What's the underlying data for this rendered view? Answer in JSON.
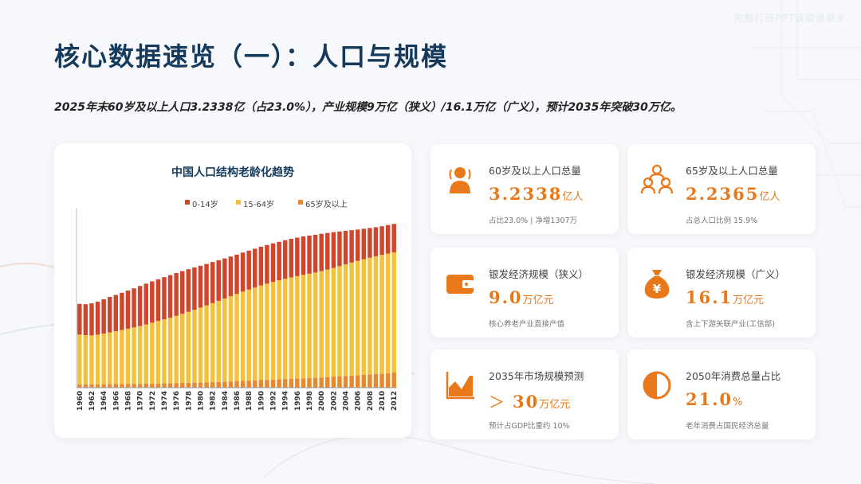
{
  "header": {
    "title": "核心数据速览（一）：人口与规模",
    "subtitle": "2025年末60岁及以上人口3.2338亿（占23.0%），产业规模9万亿（狭义）/16.1万亿（广义），预计2035年突破30万亿。",
    "watermark": "完整行研PPT获取请联系"
  },
  "chart_data": {
    "type": "bar",
    "stacked": true,
    "title": "中国人口结构老龄化趋势",
    "legend_position": "top",
    "x": [
      1960,
      1961,
      1962,
      1963,
      1964,
      1965,
      1966,
      1967,
      1968,
      1969,
      1970,
      1971,
      1972,
      1973,
      1974,
      1975,
      1976,
      1977,
      1978,
      1979,
      1980,
      1981,
      1982,
      1983,
      1984,
      1985,
      1986,
      1987,
      1988,
      1989,
      1990,
      1991,
      1992,
      1993,
      1994,
      1995,
      1996,
      1997,
      1998,
      1999,
      2000,
      2001,
      2002,
      2003,
      2004,
      2005,
      2006,
      2007,
      2008,
      2009,
      2010,
      2011,
      2012
    ],
    "tick_labels": [
      "1960",
      "1962",
      "1964",
      "1966",
      "1968",
      "1970",
      "1972",
      "1974",
      "1976",
      "1978",
      "1980",
      "1982",
      "1984",
      "1986",
      "1988",
      "1990",
      "1992",
      "1994",
      "1996",
      "1998",
      "2000",
      "2002",
      "2004",
      "2006",
      "2008",
      "2010",
      "2012"
    ],
    "ylim": [
      0,
      1400000000
    ],
    "series": [
      {
        "name": "0-14岁",
        "color": "#d0452b",
        "values": [
          240000000,
          242000000,
          250000000,
          258000000,
          268000000,
          277000000,
          284000000,
          291000000,
          298000000,
          305000000,
          313000000,
          318000000,
          323000000,
          326000000,
          330000000,
          333000000,
          334000000,
          334000000,
          333000000,
          331000000,
          327000000,
          324000000,
          321000000,
          317000000,
          313000000,
          310000000,
          307000000,
          305000000,
          304000000,
          303000000,
          303000000,
          302000000,
          301000000,
          301000000,
          302000000,
          302000000,
          301000000,
          300000000,
          298000000,
          295000000,
          292000000,
          286000000,
          280000000,
          271000000,
          262000000,
          253000000,
          245000000,
          238000000,
          232000000,
          227000000,
          224000000,
          223000000,
          222000000
        ]
      },
      {
        "name": "15-64岁",
        "color": "#f2c23c",
        "values": [
          390000000,
          385000000,
          383000000,
          388000000,
          396000000,
          405000000,
          413000000,
          422000000,
          432000000,
          442000000,
          452000000,
          464000000,
          476000000,
          488000000,
          500000000,
          512000000,
          526000000,
          540000000,
          555000000,
          570000000,
          586000000,
          602000000,
          618000000,
          634000000,
          650000000,
          666000000,
          682000000,
          698000000,
          712000000,
          726000000,
          740000000,
          752000000,
          764000000,
          774000000,
          784000000,
          793000000,
          801000000,
          809000000,
          816000000,
          823000000,
          831000000,
          840000000,
          850000000,
          861000000,
          872000000,
          883000000,
          893000000,
          903000000,
          912000000,
          920000000,
          928000000,
          934000000,
          940000000
        ]
      },
      {
        "name": "65岁及以上",
        "color": "#e8892d",
        "values": [
          25000000,
          25500000,
          26000000,
          26500000,
          27000000,
          27500000,
          28000000,
          28500000,
          29000000,
          29500000,
          30000000,
          31000000,
          32000000,
          33000000,
          34000000,
          35000000,
          36000000,
          37000000,
          38000000,
          39000000,
          40000000,
          41000000,
          43000000,
          45000000,
          47000000,
          49000000,
          51000000,
          53000000,
          55000000,
          57000000,
          59000000,
          61000000,
          63000000,
          65000000,
          67000000,
          69000000,
          71000000,
          73000000,
          75000000,
          77000000,
          80000000,
          83000000,
          86000000,
          89000000,
          92000000,
          95000000,
          98000000,
          101000000,
          104000000,
          107000000,
          110000000,
          114000000,
          118000000
        ]
      }
    ]
  },
  "cards": [
    {
      "label": "60岁及以上人口总量",
      "value": "3.2338",
      "unit": "亿人",
      "note": "占比23.0% | 净增1307万",
      "icon": "elderly-person-icon"
    },
    {
      "label": "65岁及以上人口总量",
      "value": "2.2365",
      "unit": "亿人",
      "note": "占总人口比例 15.9%",
      "icon": "people-group-icon"
    },
    {
      "label": "银发经济规模（狭义）",
      "value": "9.0",
      "unit": "万亿元",
      "note": "核心养老产业直接产值",
      "icon": "wallet-icon"
    },
    {
      "label": "银发经济规模（广义）",
      "value": "16.1",
      "unit": "万亿元",
      "note": "含上下游关联产业(工信部)",
      "icon": "money-bag-icon"
    },
    {
      "label": "2035年市场规模预测",
      "arrow": "＞",
      "value": "30",
      "unit": "万亿元",
      "note": "预计占GDP比重约 10%",
      "icon": "area-chart-icon"
    },
    {
      "label": "2050年消费总量占比",
      "value": "21.0",
      "unit": "%",
      "note": "老年消费占国民经济总量",
      "icon": "half-circle-icon"
    }
  ],
  "colors": {
    "accent": "#e8781a",
    "title": "#153a5c"
  }
}
